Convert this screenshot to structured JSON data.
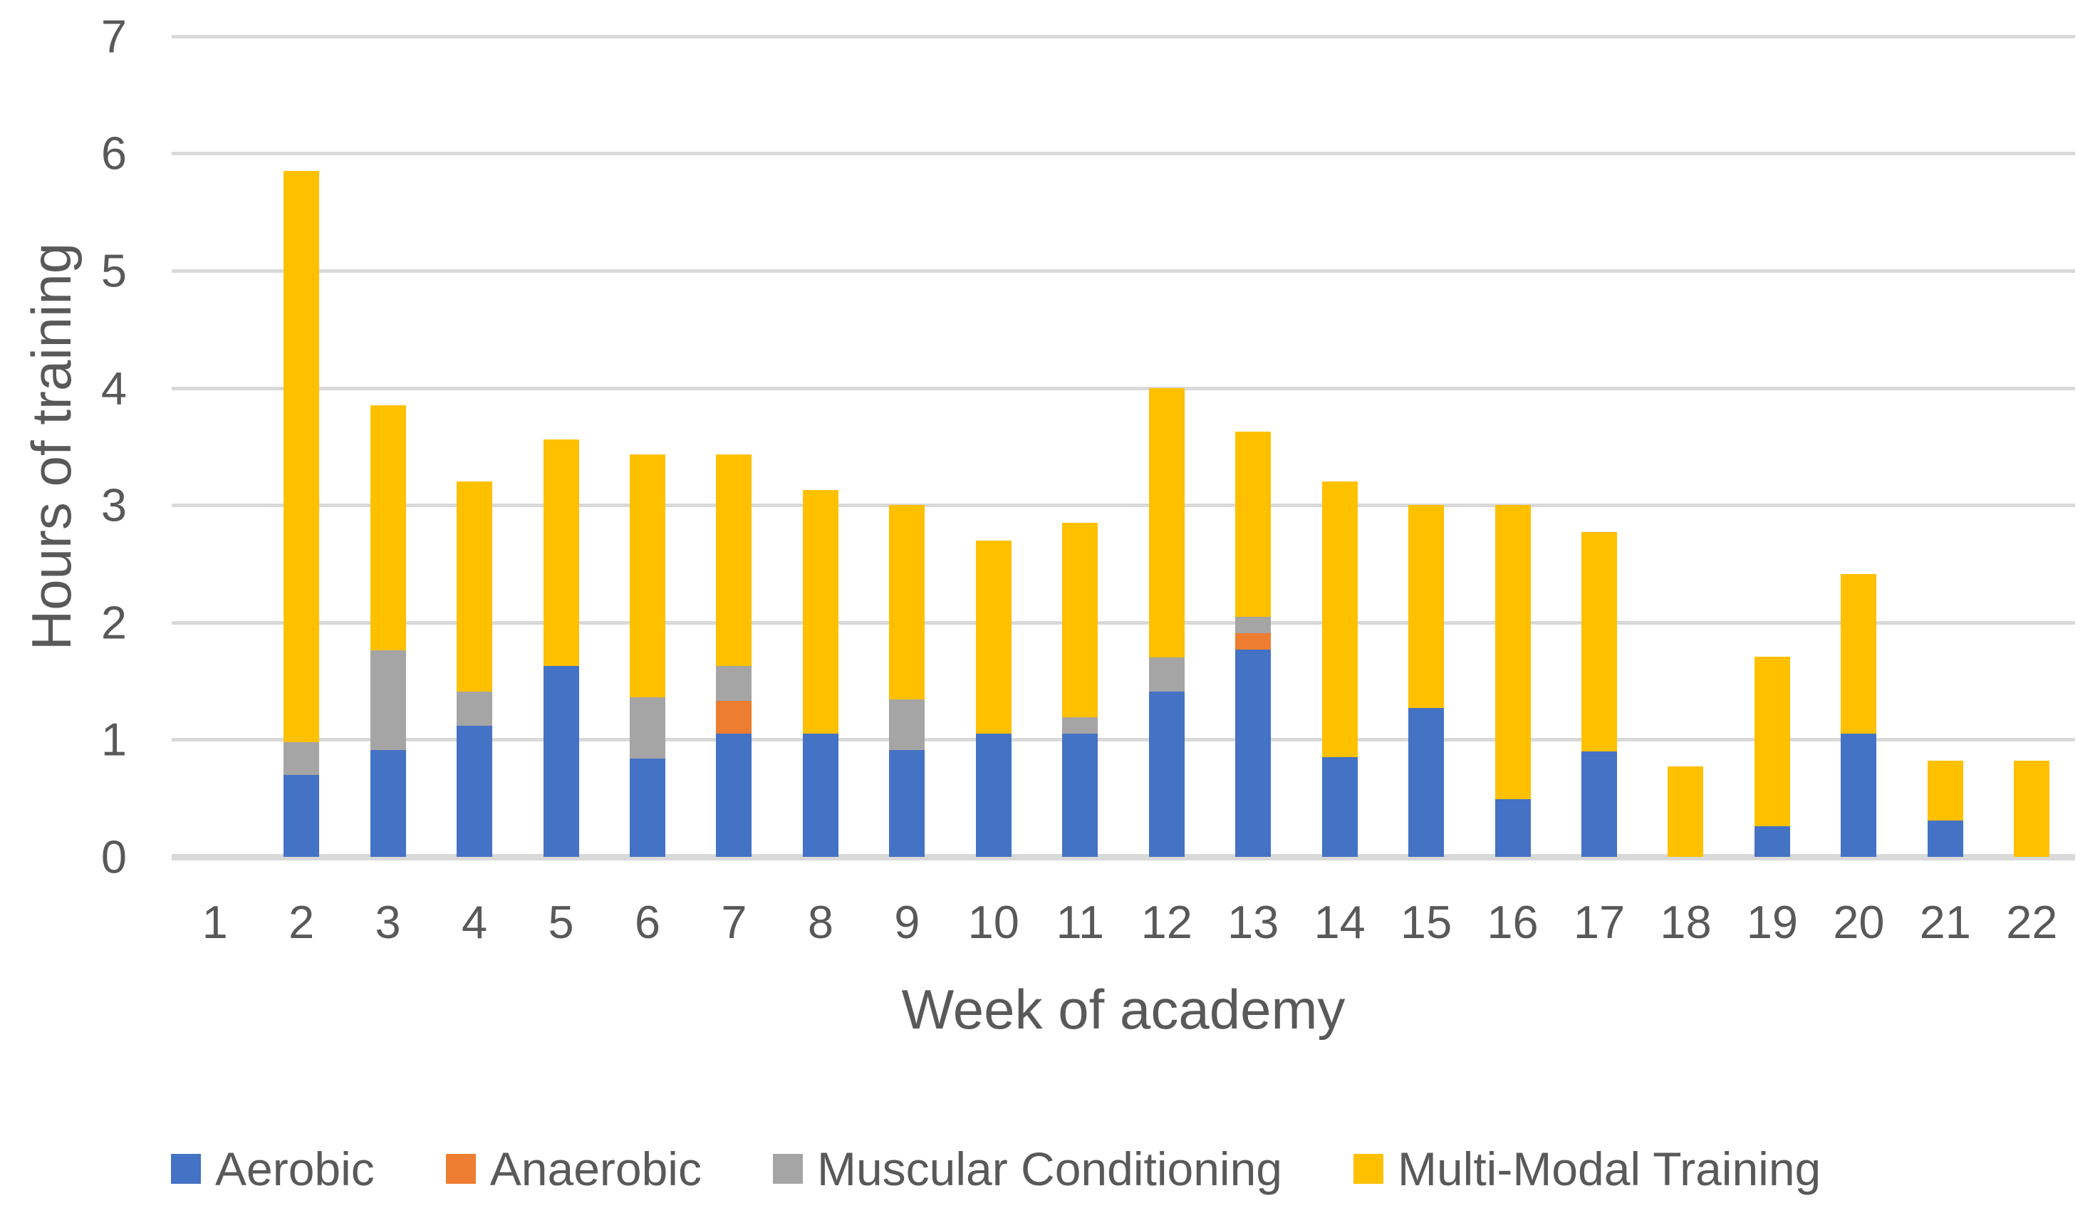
{
  "chart_data": {
    "type": "bar",
    "subtype": "stacked-vertical",
    "title": "",
    "xlabel": "Week of academy",
    "ylabel": "Hours of training",
    "ylim": [
      0,
      7
    ],
    "y_tick_interval": 1,
    "y_ticks": [
      "0",
      "1",
      "2",
      "3",
      "4",
      "5",
      "6",
      "7"
    ],
    "grid": "horizontal",
    "legend_position": "bottom",
    "categories": [
      "1",
      "2",
      "3",
      "4",
      "5",
      "6",
      "7",
      "8",
      "9",
      "10",
      "11",
      "12",
      "13",
      "14",
      "15",
      "16",
      "17",
      "18",
      "19",
      "20",
      "21",
      "22"
    ],
    "series": [
      {
        "name": "Aerobic",
        "color": "#4472C4",
        "values": [
          0,
          0.7,
          0.91,
          1.12,
          1.63,
          0.84,
          1.05,
          1.05,
          0.91,
          1.05,
          1.05,
          1.41,
          1.77,
          0.85,
          1.27,
          0.49,
          0.9,
          0,
          0.26,
          1.05,
          0.31,
          0
        ]
      },
      {
        "name": "Anaerobic",
        "color": "#ED7D31",
        "values": [
          0,
          0,
          0,
          0,
          0,
          0,
          0.28,
          0,
          0,
          0,
          0,
          0,
          0.14,
          0,
          0,
          0,
          0,
          0,
          0,
          0,
          0,
          0
        ]
      },
      {
        "name": "Muscular Conditioning",
        "color": "#A5A5A5",
        "values": [
          0,
          0.28,
          0.85,
          0.29,
          0,
          0.52,
          0.3,
          0,
          0.43,
          0,
          0.14,
          0.29,
          0.14,
          0,
          0,
          0,
          0,
          0,
          0,
          0,
          0,
          0
        ]
      },
      {
        "name": "Multi-Modal Training",
        "color": "#FFC000",
        "values": [
          0,
          4.87,
          2.09,
          1.79,
          1.93,
          2.07,
          1.8,
          2.08,
          1.66,
          1.65,
          1.66,
          2.3,
          1.58,
          2.35,
          1.73,
          2.51,
          1.87,
          0.77,
          1.45,
          1.36,
          0.51,
          0.82
        ]
      }
    ],
    "totals": [
      0,
      5.85,
      3.85,
      3.2,
      3.56,
      3.43,
      3.43,
      3.13,
      3.0,
      2.7,
      2.85,
      4.0,
      3.63,
      3.2,
      3.0,
      3.0,
      2.77,
      0.77,
      1.71,
      2.41,
      0.82,
      0.82
    ],
    "colors": {
      "gridline": "#D9D9D9",
      "axis_line": "#D9D9D9",
      "text": "#595959",
      "background": "#FFFFFF"
    }
  },
  "layout_note": "plot area only; no chart title shown"
}
